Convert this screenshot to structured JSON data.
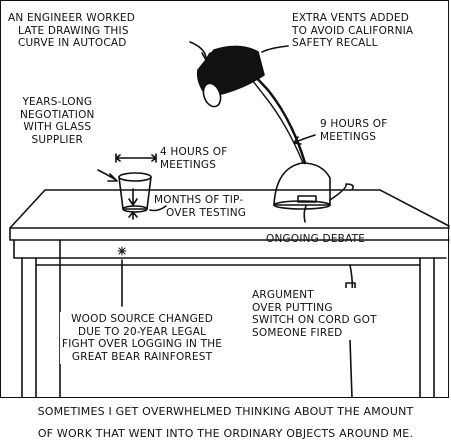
{
  "annotations": {
    "engineer": [
      "An engineer worked",
      "late drawing this",
      "curve in Autocad"
    ],
    "vents": [
      "Extra vents added",
      "to avoid California",
      "safety recall"
    ],
    "negotiation": [
      "Years-long",
      "negotiation",
      "with glass",
      "supplier"
    ],
    "four_hours": [
      "4 hours of",
      "meetings"
    ],
    "nine_hours": [
      "9 hours of",
      "meetings"
    ],
    "tipover": [
      "Months of tip-",
      "over testing"
    ],
    "debate": [
      "Ongoing debate"
    ],
    "wood": [
      "Wood source changed",
      "due to 20-year legal",
      "fight over logging in the",
      "Great Bear Rainforest"
    ],
    "argument": [
      "Argument",
      "over putting",
      "switch on cord got",
      "someone fired"
    ]
  },
  "caption": [
    "Sometimes I get overwhelmed thinking about the amount",
    "of work that went into the ordinary objects around me."
  ]
}
